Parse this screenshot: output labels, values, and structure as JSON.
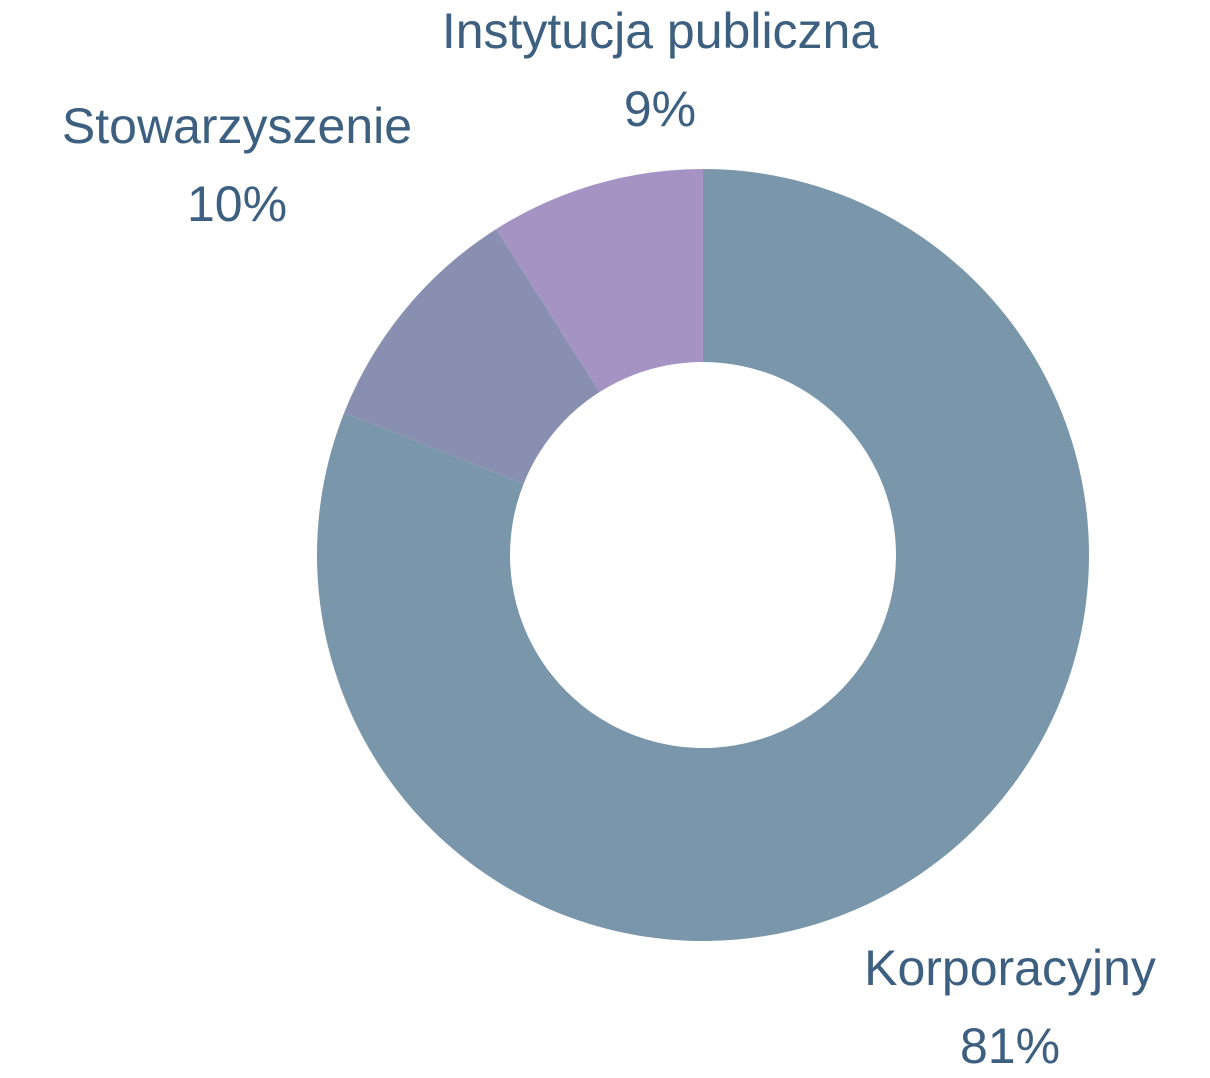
{
  "chart_data": {
    "type": "donut",
    "categories": [
      "Korporacyjny",
      "Stowarzyszenie",
      "Instytucja publiczna"
    ],
    "values": [
      81,
      10,
      9
    ],
    "value_labels": [
      "81%",
      "10%",
      "9%"
    ],
    "colors": [
      "#7a96aa",
      "#888fb0",
      "#a593c4"
    ]
  }
}
